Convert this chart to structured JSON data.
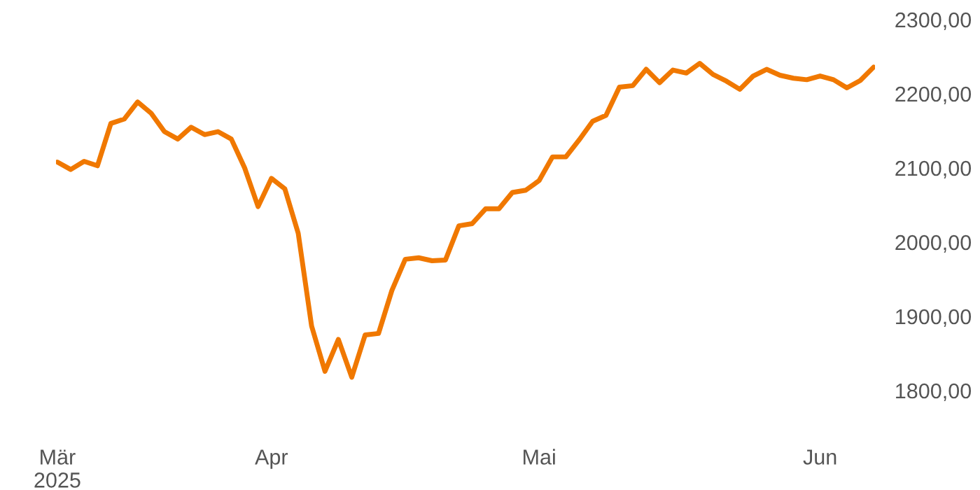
{
  "chart_data": {
    "type": "line",
    "categories": [
      "Mär\n2025",
      null,
      null,
      null,
      null,
      null,
      null,
      null,
      null,
      null,
      null,
      null,
      null,
      null,
      null,
      null,
      "Apr",
      null,
      null,
      null,
      null,
      null,
      null,
      null,
      null,
      null,
      null,
      null,
      null,
      null,
      null,
      null,
      null,
      null,
      null,
      null,
      "Mai",
      null,
      null,
      null,
      null,
      null,
      null,
      null,
      null,
      null,
      null,
      null,
      null,
      null,
      null,
      null,
      null,
      null,
      null,
      null,
      null,
      "Jun",
      null,
      null,
      null,
      null
    ],
    "series": [
      {
        "color": "#f07800",
        "values": [
          2108,
          2098,
          2109,
          2103,
          2160,
          2166,
          2189,
          2174,
          2149,
          2139,
          2155,
          2145,
          2149,
          2139,
          2100,
          2048,
          2086,
          2072,
          2012,
          1887,
          1826,
          1869,
          1818,
          1875,
          1877,
          1935,
          1977,
          1979,
          1975,
          1976,
          2022,
          2025,
          2045,
          2045,
          2067,
          2070,
          2083,
          2115,
          2115,
          2138,
          2163,
          2171,
          2209,
          2211,
          2233,
          2215,
          2232,
          2228,
          2241,
          2226,
          2217,
          2206,
          2224,
          2233,
          2225,
          2221,
          2219,
          2224,
          2219,
          2208,
          2218,
          2236
        ]
      }
    ],
    "ylim": [
      1800,
      2300
    ],
    "yticks": [
      {
        "value": 1800,
        "label": "1800,00"
      },
      {
        "value": 1900,
        "label": "1900,00"
      },
      {
        "value": 2000,
        "label": "2000,00"
      },
      {
        "value": 2100,
        "label": "2100,00"
      },
      {
        "value": 2200,
        "label": "2200,00"
      },
      {
        "value": 2300,
        "label": "2300,00"
      }
    ],
    "grid": false,
    "legend": false,
    "marker": "none",
    "line_style": "solid"
  }
}
